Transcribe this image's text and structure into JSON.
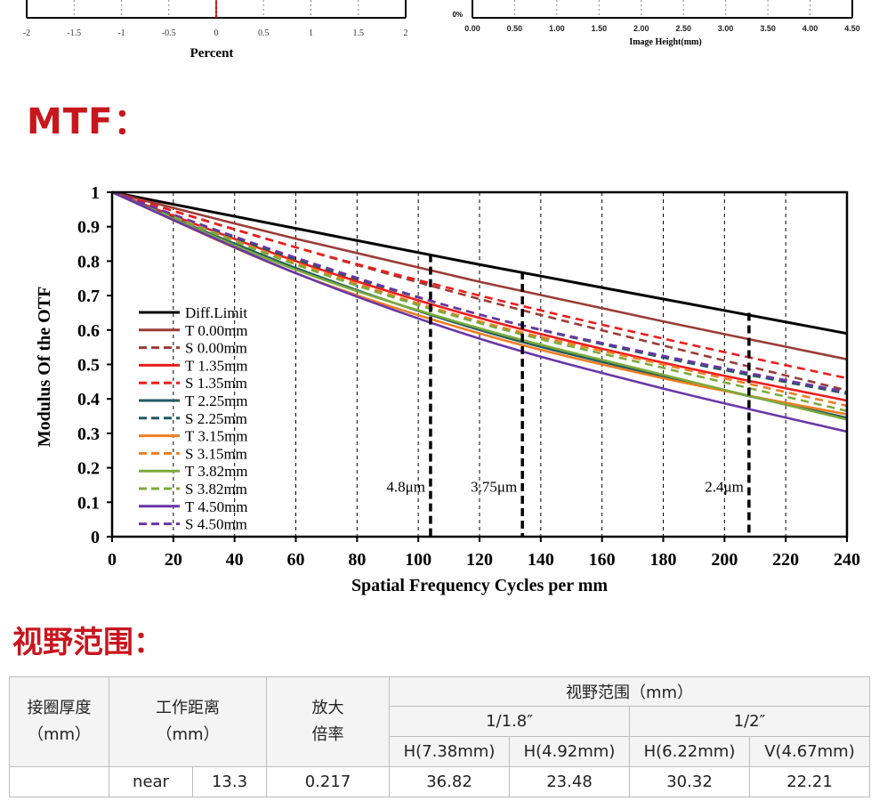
{
  "top_left_chart": {
    "ticks": [
      "-2",
      "-1.5",
      "-1",
      "-0.5",
      "0",
      "0.5",
      "1",
      "1.5",
      "2"
    ],
    "xlabel": "Percent"
  },
  "top_right_chart": {
    "y_tick": "0%",
    "ticks": [
      "0.00",
      "0.50",
      "1.00",
      "1.50",
      "2.00",
      "2.50",
      "3.00",
      "3.50",
      "4.00",
      "4.50"
    ],
    "xlabel": "Image Height(mm)"
  },
  "sections": {
    "mtf_title": "MTF：",
    "fov_title": "视野范围："
  },
  "chart_data": {
    "type": "line",
    "title": "",
    "xlabel": "Spatial Frequency Cycles per mm",
    "ylabel": "Modulus Of the OTF",
    "xlim": [
      0,
      240
    ],
    "ylim": [
      0,
      1
    ],
    "x_ticks": [
      0,
      20,
      40,
      60,
      80,
      100,
      120,
      140,
      160,
      180,
      200,
      220,
      240
    ],
    "y_ticks": [
      0,
      0.1,
      0.2,
      0.3,
      0.4,
      0.5,
      0.6,
      0.7,
      0.8,
      0.9,
      1
    ],
    "grid": "vertical dashed",
    "legend_position": "left-middle",
    "series": [
      {
        "name": "Diff.Limit",
        "color": "#000000",
        "dash": "solid",
        "x": [
          0,
          60,
          120,
          180,
          240
        ],
        "values": [
          1.0,
          0.895,
          0.79,
          0.69,
          0.59
        ]
      },
      {
        "name": "T 0.00mm",
        "color": "#9b3c35",
        "dash": "solid",
        "x": [
          0,
          60,
          120,
          180,
          240
        ],
        "values": [
          1.0,
          0.865,
          0.74,
          0.625,
          0.515
        ]
      },
      {
        "name": "S 0.00mm",
        "color": "#9b3c35",
        "dash": "dashed",
        "x": [
          0,
          60,
          120,
          180,
          240
        ],
        "values": [
          1.0,
          0.84,
          0.69,
          0.555,
          0.425
        ]
      },
      {
        "name": "T 1.35mm",
        "color": "#ee1c1c",
        "dash": "solid",
        "x": [
          0,
          60,
          120,
          180,
          240
        ],
        "values": [
          1.0,
          0.8,
          0.635,
          0.505,
          0.395
        ]
      },
      {
        "name": "S 1.35mm",
        "color": "#ee1c1c",
        "dash": "dashed",
        "x": [
          0,
          60,
          120,
          180,
          240
        ],
        "values": [
          1.0,
          0.84,
          0.7,
          0.575,
          0.46
        ]
      },
      {
        "name": "T 2.25mm",
        "color": "#215a62",
        "dash": "solid",
        "x": [
          0,
          60,
          120,
          180,
          240
        ],
        "values": [
          1.0,
          0.78,
          0.6,
          0.465,
          0.345
        ]
      },
      {
        "name": "S 2.25mm",
        "color": "#215a62",
        "dash": "dashed",
        "x": [
          0,
          60,
          120,
          180,
          240
        ],
        "values": [
          1.0,
          0.805,
          0.645,
          0.52,
          0.415
        ]
      },
      {
        "name": "T 3.15mm",
        "color": "#ef7d22",
        "dash": "solid",
        "x": [
          0,
          60,
          120,
          180,
          240
        ],
        "values": [
          1.0,
          0.765,
          0.59,
          0.46,
          0.355
        ]
      },
      {
        "name": "S 3.15mm",
        "color": "#ef7d22",
        "dash": "dashed",
        "x": [
          0,
          60,
          120,
          180,
          240
        ],
        "values": [
          1.0,
          0.795,
          0.625,
          0.5,
          0.38
        ]
      },
      {
        "name": "T 3.82mm",
        "color": "#7cab3b",
        "dash": "solid",
        "x": [
          0,
          60,
          120,
          180,
          240
        ],
        "values": [
          1.0,
          0.775,
          0.605,
          0.47,
          0.34
        ]
      },
      {
        "name": "S 3.82mm",
        "color": "#7cab3b",
        "dash": "dashed",
        "x": [
          0,
          60,
          120,
          180,
          240
        ],
        "values": [
          1.0,
          0.79,
          0.62,
          0.49,
          0.365
        ]
      },
      {
        "name": "T 4.50mm",
        "color": "#6a36a8",
        "dash": "solid",
        "x": [
          0,
          60,
          120,
          180,
          240
        ],
        "values": [
          1.0,
          0.765,
          0.575,
          0.43,
          0.305
        ]
      },
      {
        "name": "S 4.50mm",
        "color": "#6a36a8",
        "dash": "dashed",
        "x": [
          0,
          60,
          120,
          180,
          240
        ],
        "values": [
          1.0,
          0.81,
          0.645,
          0.525,
          0.42
        ]
      }
    ],
    "markers": [
      {
        "x": 104,
        "top": 0.82,
        "label": "4.8μm"
      },
      {
        "x": 134,
        "top": 0.77,
        "label": "3.75μm"
      },
      {
        "x": 208,
        "top": 0.65,
        "label": "2.4μm"
      }
    ]
  },
  "fov_table": {
    "col1": "接圈厚度\n（mm）",
    "col2": "工作距离\n（mm）",
    "col3": "放大\n倍率",
    "group": "视野范围（mm）",
    "sensor1": "1/1.8″",
    "sensor2": "1/2″",
    "h1": "H(7.38mm)",
    "h2": "H(4.92mm)",
    "h3": "H(6.22mm)",
    "h4": "V(4.67mm)",
    "row1": {
      "near": "near",
      "wd": "13.3",
      "mag": "0.217",
      "v1": "36.82",
      "v2": "23.48",
      "v3": "30.32",
      "v4": "22.21"
    }
  }
}
